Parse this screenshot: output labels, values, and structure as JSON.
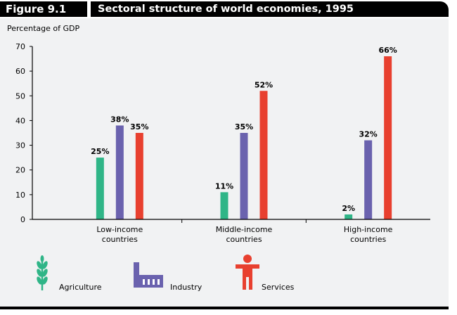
{
  "figure_label": "Figure 9.1",
  "figure_title": "Sectoral structure of world economies, 1995",
  "colors": {
    "agriculture": "#2fb587",
    "industry": "#6a62ae",
    "services": "#e8402f"
  },
  "chart_data": {
    "type": "bar",
    "title": "Sectoral structure of world economies, 1995",
    "ylabel": "Percentage of GDP",
    "xlabel": "",
    "ylim": [
      0,
      70
    ],
    "yticks": [
      0,
      10,
      20,
      30,
      40,
      50,
      60,
      70
    ],
    "grid": false,
    "categories": [
      [
        "Low-income",
        "countries"
      ],
      [
        "Middle-income",
        "countries"
      ],
      [
        "High-income",
        "countries"
      ]
    ],
    "series": [
      {
        "name": "Agriculture",
        "color_key": "agriculture",
        "values": [
          25,
          11,
          2
        ],
        "labels": [
          "25%",
          "11%",
          "2%"
        ]
      },
      {
        "name": "Industry",
        "color_key": "industry",
        "values": [
          38,
          35,
          32
        ],
        "labels": [
          "38%",
          "35%",
          "32%"
        ]
      },
      {
        "name": "Services",
        "color_key": "services",
        "values": [
          35,
          52,
          66
        ],
        "labels": [
          "35%",
          "52%",
          "66%"
        ]
      }
    ],
    "legend_position": "bottom-left"
  }
}
